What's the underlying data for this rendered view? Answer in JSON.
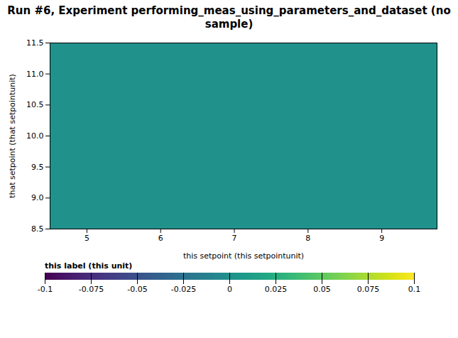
{
  "chart_data": {
    "type": "heatmap",
    "title": "Run #6, Experiment performing_meas_using_parameters_and_dataset (no\nsample)",
    "xlabel": "this setpoint (this setpointunit)",
    "ylabel": "that setpoint (that setpointunit)",
    "xlim": [
      4.5,
      9.75
    ],
    "ylim": [
      8.5,
      11.5
    ],
    "xticks": [
      5,
      6,
      7,
      8,
      9
    ],
    "yticks": [
      8.5,
      {
        "value": 9.0,
        "label": "9.0"
      },
      9.5,
      {
        "value": 10.0,
        "label": "10.0"
      },
      10.5,
      {
        "value": 11.0,
        "label": "11.0"
      },
      11.5
    ],
    "values": [
      [
        0.0
      ]
    ],
    "color": "viridis",
    "grid": false,
    "colorbar": {
      "label": "this label (this unit)",
      "range": [
        -0.1,
        0.1
      ],
      "ticks": [
        0.1,
        0.075,
        0.05,
        0.025,
        0,
        -0.025,
        -0.05,
        -0.075,
        -0.1
      ]
    }
  }
}
